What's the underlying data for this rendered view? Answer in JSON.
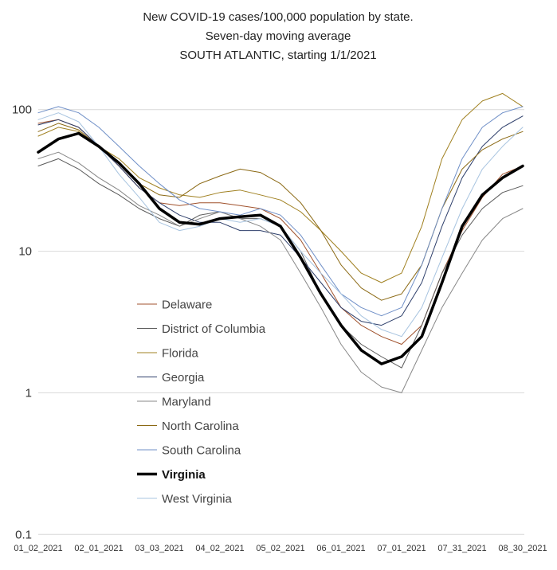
{
  "chart_data": {
    "type": "line",
    "title": [
      "New COVID-19 cases/100,000 population by state.",
      "Seven-day moving average",
      "SOUTH ATLANTIC, starting 1/1/2021"
    ],
    "xlabel": "",
    "ylabel": "",
    "yscale": "log",
    "ylim": [
      0.1,
      150
    ],
    "ytick_values": [
      0.1,
      1,
      10,
      100
    ],
    "ytick_labels": [
      "0.1",
      "1",
      "10",
      "100"
    ],
    "grid": "horizontal",
    "legend_position": "center-left",
    "x_key_dates": [
      "2021-01-02",
      "2021-02-01",
      "2021-03-03",
      "2021-04-02",
      "2021-05-02",
      "2021-06-01",
      "2021-07-01",
      "2021-07-31",
      "2021-08-30"
    ],
    "xtick_labels": [
      "01_02_2021",
      "02_01_2021",
      "03_03_2021",
      "04_02_2021",
      "05_02_2021",
      "06_01_2021",
      "07_01_2021",
      "07_31_2021",
      "08_30_2021"
    ],
    "x": [
      "2021-01-02",
      "2021-01-12",
      "2021-01-22",
      "2021-02-01",
      "2021-02-11",
      "2021-02-21",
      "2021-03-03",
      "2021-03-13",
      "2021-03-23",
      "2021-04-02",
      "2021-04-12",
      "2021-04-22",
      "2021-05-02",
      "2021-05-12",
      "2021-05-22",
      "2021-06-01",
      "2021-06-11",
      "2021-06-21",
      "2021-07-01",
      "2021-07-11",
      "2021-07-21",
      "2021-07-31",
      "2021-08-10",
      "2021-08-20",
      "2021-08-30"
    ],
    "series": [
      {
        "name": "Delaware",
        "color": "#a0522d",
        "width": 1,
        "values": [
          80,
          85,
          75,
          55,
          40,
          28,
          22,
          21,
          22,
          22,
          21,
          20,
          17,
          12,
          7,
          4,
          3,
          2.5,
          2.2,
          3,
          7,
          14,
          24,
          35,
          40
        ]
      },
      {
        "name": "District of Columbia",
        "color": "#5a5a5a",
        "width": 1,
        "values": [
          40,
          45,
          38,
          30,
          25,
          20,
          17,
          15,
          18,
          19,
          17,
          17,
          15,
          10,
          5,
          3,
          2.2,
          1.8,
          1.5,
          3,
          7,
          13,
          20,
          26,
          29
        ]
      },
      {
        "name": "Florida",
        "color": "#a08020",
        "width": 1,
        "values": [
          65,
          75,
          70,
          55,
          45,
          33,
          28,
          25,
          24,
          26,
          27,
          25,
          23,
          19,
          14,
          10,
          7,
          6,
          7,
          15,
          45,
          85,
          115,
          130,
          105
        ]
      },
      {
        "name": "Georgia",
        "color": "#2e3f6b",
        "width": 1,
        "values": [
          78,
          85,
          75,
          55,
          40,
          28,
          22,
          18,
          16,
          16,
          14,
          14,
          13,
          9,
          6,
          4,
          3.2,
          3,
          3.5,
          6,
          15,
          33,
          55,
          75,
          90
        ]
      },
      {
        "name": "Maryland",
        "color": "#888888",
        "width": 1,
        "values": [
          45,
          50,
          42,
          33,
          27,
          21,
          18,
          15,
          17,
          19,
          17,
          15,
          12,
          7,
          4,
          2.2,
          1.4,
          1.1,
          1,
          2,
          4,
          7,
          12,
          17,
          20
        ]
      },
      {
        "name": "North Carolina",
        "color": "#8b6914",
        "width": 1,
        "values": [
          70,
          80,
          72,
          55,
          42,
          30,
          25,
          24,
          30,
          34,
          38,
          36,
          30,
          22,
          14,
          8,
          5.5,
          4.5,
          5,
          8,
          20,
          38,
          52,
          62,
          70
        ]
      },
      {
        "name": "South Carolina",
        "color": "#6f8fc7",
        "width": 1,
        "values": [
          95,
          105,
          95,
          75,
          55,
          40,
          30,
          23,
          20,
          19,
          18,
          20,
          18,
          13,
          8,
          5,
          4,
          3.5,
          4,
          8,
          20,
          45,
          75,
          95,
          105
        ]
      },
      {
        "name": "Virginia",
        "color": "#000000",
        "width": 3.5,
        "values": [
          50,
          62,
          68,
          55,
          42,
          30,
          20,
          16,
          15.5,
          17,
          17.5,
          18,
          15,
          9,
          5,
          3,
          2,
          1.6,
          1.8,
          2.5,
          6,
          15,
          25,
          33,
          40
        ]
      },
      {
        "name": "West Virginia",
        "color": "#a8c4e0",
        "width": 1,
        "values": [
          85,
          95,
          82,
          55,
          35,
          24,
          16,
          14,
          15,
          17,
          16,
          17,
          15,
          10,
          7,
          5,
          3.5,
          2.8,
          2.5,
          4,
          9,
          20,
          38,
          55,
          75
        ]
      }
    ]
  }
}
